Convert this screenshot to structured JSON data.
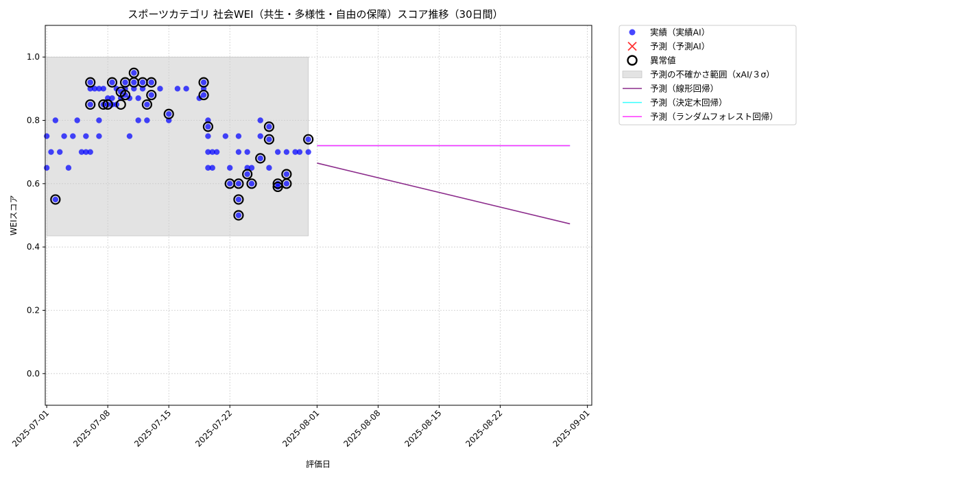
{
  "chart_data": {
    "type": "scatter",
    "title": "スポーツカテゴリ 社会WEI（共生・多様性・自由の保障）スコア推移（30日間）",
    "xlabel": "評価日",
    "ylabel": "WEIスコア",
    "xlim": [
      "2025-06-30T20:00",
      "2025-09-01T12:00"
    ],
    "ylim": [
      -0.1,
      1.1
    ],
    "x_ticks": [
      "2025-07-01",
      "2025-07-08",
      "2025-07-15",
      "2025-07-22",
      "2025-08-01",
      "2025-08-08",
      "2025-08-15",
      "2025-08-22",
      "2025-09-01"
    ],
    "y_ticks": [
      "0.0",
      "0.2",
      "0.4",
      "0.6",
      "0.8",
      "1.0"
    ],
    "grid": true,
    "legend_position": "outside-top-right",
    "colors": {
      "actual": "#0000ff",
      "predicted_ai": "#ff3333",
      "anomaly": "#000000",
      "uncertainty": "#cccccc",
      "linear": "#8b2b8b",
      "decision_tree": "#33ffff",
      "random_forest": "#ff33ff"
    },
    "legend": [
      {
        "key": "actual",
        "label": "実績（実績AI）"
      },
      {
        "key": "predicted_ai",
        "label": "予測（予測AI）"
      },
      {
        "key": "anomaly",
        "label": "異常値"
      },
      {
        "key": "uncertainty",
        "label": "予測の不確かさ範囲（xAI/３σ）"
      },
      {
        "key": "linear",
        "label": "予測（線形回帰）"
      },
      {
        "key": "decision_tree",
        "label": "予測（決定木回帰）"
      },
      {
        "key": "random_forest",
        "label": "予測（ランダムフォレスト回帰）"
      }
    ],
    "uncertainty_band": {
      "x": [
        "2025-07-01",
        "2025-07-31"
      ],
      "y": [
        0.435,
        1.0
      ]
    },
    "series": [
      {
        "key": "actual",
        "points": [
          [
            "2025-07-01T00:00",
            0.75
          ],
          [
            "2025-07-01T00:00",
            0.65
          ],
          [
            "2025-07-01T12:00",
            0.7
          ],
          [
            "2025-07-02T00:00",
            0.8
          ],
          [
            "2025-07-02T00:00",
            0.55
          ],
          [
            "2025-07-02T12:00",
            0.7
          ],
          [
            "2025-07-03T00:00",
            0.75
          ],
          [
            "2025-07-03T12:00",
            0.65
          ],
          [
            "2025-07-04T00:00",
            0.75
          ],
          [
            "2025-07-04T12:00",
            0.8
          ],
          [
            "2025-07-05T00:00",
            0.7
          ],
          [
            "2025-07-05T12:00",
            0.7
          ],
          [
            "2025-07-05T12:00",
            0.75
          ],
          [
            "2025-07-06T00:00",
            0.7
          ],
          [
            "2025-07-06T00:00",
            0.85
          ],
          [
            "2025-07-06T00:00",
            0.9
          ],
          [
            "2025-07-06T00:00",
            0.92
          ],
          [
            "2025-07-06T12:00",
            0.9
          ],
          [
            "2025-07-07T00:00",
            0.9
          ],
          [
            "2025-07-07T00:00",
            0.8
          ],
          [
            "2025-07-07T00:00",
            0.75
          ],
          [
            "2025-07-07T12:00",
            0.85
          ],
          [
            "2025-07-07T12:00",
            0.9
          ],
          [
            "2025-07-08T00:00",
            0.87
          ],
          [
            "2025-07-08T00:00",
            0.85
          ],
          [
            "2025-07-08T12:00",
            0.85
          ],
          [
            "2025-07-08T12:00",
            0.92
          ],
          [
            "2025-07-08T12:00",
            0.87
          ],
          [
            "2025-07-09T00:00",
            0.9
          ],
          [
            "2025-07-09T00:00",
            0.85
          ],
          [
            "2025-07-09T12:00",
            0.87
          ],
          [
            "2025-07-09T12:00",
            0.89
          ],
          [
            "2025-07-10T00:00",
            0.92
          ],
          [
            "2025-07-10T00:00",
            0.88
          ],
          [
            "2025-07-10T00:00",
            0.9
          ],
          [
            "2025-07-10T12:00",
            0.87
          ],
          [
            "2025-07-10T12:00",
            0.75
          ],
          [
            "2025-07-11T00:00",
            0.9
          ],
          [
            "2025-07-11T00:00",
            0.92
          ],
          [
            "2025-07-11T00:00",
            0.95
          ],
          [
            "2025-07-11T12:00",
            0.87
          ],
          [
            "2025-07-11T12:00",
            0.8
          ],
          [
            "2025-07-12T00:00",
            0.92
          ],
          [
            "2025-07-12T00:00",
            0.9
          ],
          [
            "2025-07-12T12:00",
            0.85
          ],
          [
            "2025-07-12T12:00",
            0.8
          ],
          [
            "2025-07-13T00:00",
            0.92
          ],
          [
            "2025-07-13T00:00",
            0.88
          ],
          [
            "2025-07-14T00:00",
            0.9
          ],
          [
            "2025-07-15T00:00",
            0.82
          ],
          [
            "2025-07-15T00:00",
            0.8
          ],
          [
            "2025-07-16T00:00",
            0.9
          ],
          [
            "2025-07-17T00:00",
            0.9
          ],
          [
            "2025-07-18T12:00",
            0.87
          ],
          [
            "2025-07-19T00:00",
            0.92
          ],
          [
            "2025-07-19T00:00",
            0.88
          ],
          [
            "2025-07-19T00:00",
            0.9
          ],
          [
            "2025-07-19T12:00",
            0.8
          ],
          [
            "2025-07-19T12:00",
            0.78
          ],
          [
            "2025-07-19T12:00",
            0.75
          ],
          [
            "2025-07-19T12:00",
            0.7
          ],
          [
            "2025-07-19T12:00",
            0.65
          ],
          [
            "2025-07-20T00:00",
            0.7
          ],
          [
            "2025-07-20T00:00",
            0.65
          ],
          [
            "2025-07-20T12:00",
            0.7
          ],
          [
            "2025-07-21T12:00",
            0.75
          ],
          [
            "2025-07-22T00:00",
            0.6
          ],
          [
            "2025-07-22T00:00",
            0.65
          ],
          [
            "2025-07-23T00:00",
            0.6
          ],
          [
            "2025-07-23T00:00",
            0.55
          ],
          [
            "2025-07-23T00:00",
            0.5
          ],
          [
            "2025-07-23T00:00",
            0.75
          ],
          [
            "2025-07-23T00:00",
            0.7
          ],
          [
            "2025-07-24T00:00",
            0.65
          ],
          [
            "2025-07-24T00:00",
            0.63
          ],
          [
            "2025-07-24T00:00",
            0.7
          ],
          [
            "2025-07-24T12:00",
            0.6
          ],
          [
            "2025-07-24T12:00",
            0.65
          ],
          [
            "2025-07-25T12:00",
            0.75
          ],
          [
            "2025-07-25T12:00",
            0.8
          ],
          [
            "2025-07-25T12:00",
            0.68
          ],
          [
            "2025-07-26T12:00",
            0.78
          ],
          [
            "2025-07-26T12:00",
            0.74
          ],
          [
            "2025-07-26T12:00",
            0.65
          ],
          [
            "2025-07-27T12:00",
            0.6
          ],
          [
            "2025-07-27T12:00",
            0.59
          ],
          [
            "2025-07-27T12:00",
            0.7
          ],
          [
            "2025-07-28T12:00",
            0.63
          ],
          [
            "2025-07-28T12:00",
            0.6
          ],
          [
            "2025-07-28T12:00",
            0.7
          ],
          [
            "2025-07-29T12:00",
            0.7
          ],
          [
            "2025-07-30T00:00",
            0.7
          ],
          [
            "2025-07-31T00:00",
            0.74
          ],
          [
            "2025-07-31T00:00",
            0.7
          ]
        ]
      },
      {
        "key": "anomaly",
        "points": [
          [
            "2025-07-02T00:00",
            0.55
          ],
          [
            "2025-07-06T00:00",
            0.85
          ],
          [
            "2025-07-06T00:00",
            0.92
          ],
          [
            "2025-07-07T12:00",
            0.85
          ],
          [
            "2025-07-08T00:00",
            0.85
          ],
          [
            "2025-07-08T00:00",
            0.85
          ],
          [
            "2025-07-08T12:00",
            0.92
          ],
          [
            "2025-07-09T12:00",
            0.85
          ],
          [
            "2025-07-09T12:00",
            0.89
          ],
          [
            "2025-07-10T00:00",
            0.92
          ],
          [
            "2025-07-10T00:00",
            0.88
          ],
          [
            "2025-07-11T00:00",
            0.92
          ],
          [
            "2025-07-11T00:00",
            0.95
          ],
          [
            "2025-07-12T00:00",
            0.92
          ],
          [
            "2025-07-12T12:00",
            0.85
          ],
          [
            "2025-07-13T00:00",
            0.92
          ],
          [
            "2025-07-13T00:00",
            0.88
          ],
          [
            "2025-07-15T00:00",
            0.82
          ],
          [
            "2025-07-19T00:00",
            0.92
          ],
          [
            "2025-07-19T00:00",
            0.88
          ],
          [
            "2025-07-19T12:00",
            0.78
          ],
          [
            "2025-07-22T00:00",
            0.6
          ],
          [
            "2025-07-23T00:00",
            0.6
          ],
          [
            "2025-07-23T00:00",
            0.55
          ],
          [
            "2025-07-23T00:00",
            0.5
          ],
          [
            "2025-07-24T00:00",
            0.63
          ],
          [
            "2025-07-24T12:00",
            0.6
          ],
          [
            "2025-07-25T12:00",
            0.68
          ],
          [
            "2025-07-26T12:00",
            0.78
          ],
          [
            "2025-07-26T12:00",
            0.74
          ],
          [
            "2025-07-27T12:00",
            0.6
          ],
          [
            "2025-07-27T12:00",
            0.59
          ],
          [
            "2025-07-28T12:00",
            0.63
          ],
          [
            "2025-07-28T12:00",
            0.6
          ],
          [
            "2025-07-31T00:00",
            0.74
          ]
        ]
      },
      {
        "key": "linear",
        "line": [
          [
            "2025-08-01T00:00",
            0.665
          ],
          [
            "2025-08-30T00:00",
            0.473
          ]
        ]
      },
      {
        "key": "decision_tree",
        "line": [
          [
            "2025-08-01T00:00",
            0.72
          ],
          [
            "2025-08-30T00:00",
            0.72
          ]
        ]
      },
      {
        "key": "random_forest",
        "line": [
          [
            "2025-08-01T00:00",
            0.72
          ],
          [
            "2025-08-30T00:00",
            0.72
          ]
        ]
      }
    ]
  }
}
